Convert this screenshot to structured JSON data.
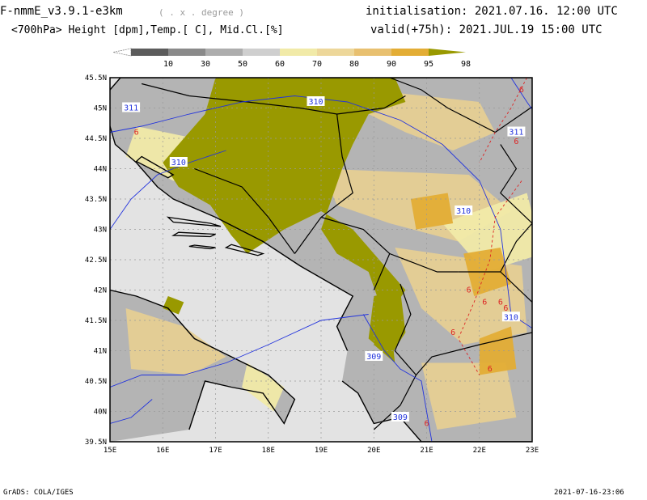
{
  "header": {
    "model": "F-nmmE_v3.9.1-e3km",
    "unit": "( . x . degree )",
    "variables": "<700hPa> Height [dpm],Temp.[ C], Mid.Cl.[%]",
    "initialisation": "initialisation: 2021.07.16.  12:00 UTC",
    "valid": "valid(+75h): 2021.JUL.19 15:00 UTC"
  },
  "colorbar": {
    "levels": [
      "10",
      "30",
      "50",
      "60",
      "70",
      "80",
      "90",
      "95",
      "98"
    ],
    "colors": [
      "#ffffff",
      "#5c5c5c",
      "#8a8a8a",
      "#adadad",
      "#cfcfcf",
      "#f1eaa8",
      "#edd79a",
      "#e8c070",
      "#e3ad35",
      "#999900"
    ]
  },
  "map": {
    "lat_labels": [
      "45.5N",
      "45N",
      "44.5N",
      "44N",
      "43.5N",
      "43N",
      "42.5N",
      "42N",
      "41.5N",
      "41N",
      "40.5N",
      "40N",
      "39.5N"
    ],
    "lon_labels": [
      "15E",
      "16E",
      "17E",
      "18E",
      "19E",
      "20E",
      "21E",
      "22E",
      "23E"
    ],
    "height_labels": [
      "311",
      "310",
      "310",
      "311",
      "310",
      "310",
      "309",
      "309"
    ],
    "temp_label": "6",
    "colors": {
      "background": "#e3e3e3",
      "grey": "#b4b4b4",
      "pale": "#f1eaa8",
      "tan": "#e6cf94",
      "orange": "#e3ad35",
      "olive": "#999900",
      "coast": "#000000",
      "contour": "#2233dd",
      "temp": "#dd2222"
    }
  },
  "footer": {
    "left": "GrADS: COLA/IGES",
    "right": "2021-07-16-23:06"
  }
}
